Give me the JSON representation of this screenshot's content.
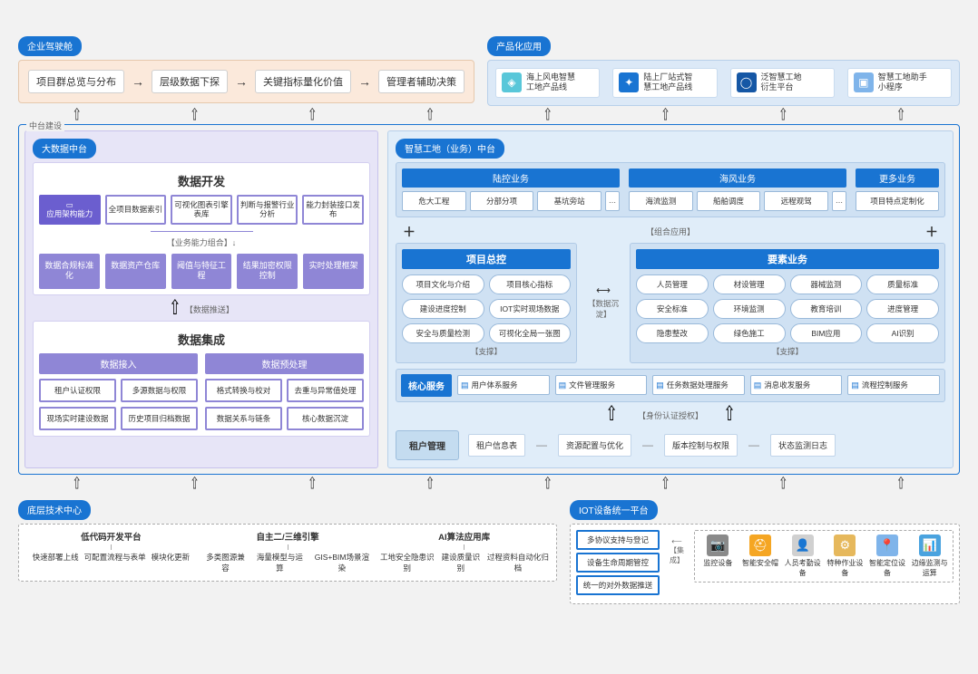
{
  "background": "#f2f2f2",
  "section_labels": {
    "cockpit": "企业驾驶舱",
    "apps": "产品化应用",
    "center_wrap": "中台建设",
    "bigdata": "大数据中台",
    "smartsite": "智慧工地（业务）中台",
    "tech": "底层技术中心",
    "iot": "IOT设备统一平台"
  },
  "cockpit": {
    "bg_color": "#fbe9db",
    "items": [
      "项目群总览与分布",
      "层级数据下探",
      "关键指标量化价值",
      "管理者辅助决策"
    ]
  },
  "apps": {
    "bg_color": "#dce9f7",
    "cards": [
      {
        "icon_bg": "#59c7d9",
        "glyph": "◈",
        "line1": "海上风电智慧",
        "line2": "工地产品线"
      },
      {
        "icon_bg": "#1974d2",
        "glyph": "✦",
        "line1": "陆上厂站式智",
        "line2": "慧工地产品线"
      },
      {
        "icon_bg": "#1557a5",
        "glyph": "◯",
        "line1": "泛智慧工地",
        "line2": "衍生平台"
      },
      {
        "icon_bg": "#7fb4ea",
        "glyph": "▣",
        "line1": "智慧工地助手",
        "line2": "小程序"
      }
    ]
  },
  "bigdata": {
    "bg_color": "#e7e5f7",
    "accent": "#8f86d6",
    "dev": {
      "title": "数据开发",
      "top_first": "应用架构能力",
      "top": [
        "全项目数据索引",
        "可视化图表引擎表库",
        "判断与报警行业分析",
        "能力封装接口发布"
      ],
      "brace_label": "【业务能力组合】↓",
      "caps": [
        "数据合规标准化",
        "数据资产仓库",
        "阈值与特征工程",
        "结果加密权限控制",
        "实时处理框架"
      ]
    },
    "mid_label": "【数据推送】",
    "ing": {
      "title": "数据集成",
      "cols": [
        {
          "head": "数据接入",
          "items": [
            "租户认证权限",
            "多源数据与权限",
            "现场实时建设数据",
            "历史项目归档数据"
          ]
        },
        {
          "head": "数据预处理",
          "items": [
            "格式转换与校对",
            "去重与异常值处理",
            "数据关系与链条",
            "核心数据沉淀"
          ]
        }
      ]
    }
  },
  "smartsite": {
    "bg_color": "#e0edf9",
    "panel_color": "#cfe1f3",
    "accent": "#1974d2",
    "biz": [
      {
        "head": "陆控业务",
        "items": [
          "危大工程",
          "分部分项",
          "基坑旁站",
          "…"
        ]
      },
      {
        "head": "海风业务",
        "items": [
          "海流监测",
          "船舶调度",
          "远程观驾",
          "…"
        ]
      }
    ],
    "biz_extra": {
      "head": "更多业务",
      "item": "项目特点定制化"
    },
    "mid_label": "【组合应用】",
    "panels": {
      "left": {
        "title": "项目总控",
        "foot": "【支撑】",
        "items": [
          "项目文化与介绍",
          "项目核心指标",
          "建设进度控制",
          "IOT实时现场数据",
          "安全与质量检测",
          "可视化全局一张图"
        ]
      },
      "gap_label": "【数据沉淀】",
      "right": {
        "title": "要素业务",
        "foot": "【支撑】",
        "items": [
          "人员管理",
          "材设管理",
          "器械监测",
          "质量标准",
          "安全标准",
          "环境监测",
          "教育培训",
          "进度管理",
          "隐患整改",
          "绿色施工",
          "BIM应用",
          "AI识别"
        ]
      }
    },
    "core": {
      "lead": "核心服务",
      "items": [
        "用户体系服务",
        "文件管理服务",
        "任务数据处理服务",
        "消息收发服务",
        "流程控制服务"
      ]
    },
    "auth_label": "【身份认证授权】",
    "tenant": {
      "lead": "租户管理",
      "items": [
        "租户信息表",
        "资源配置与优化",
        "版本控制与权限",
        "状态监测日志"
      ]
    }
  },
  "tech": {
    "cols": [
      {
        "head": "低代码开发平台",
        "items": [
          "快速部署上线",
          "可配置流程与表单",
          "模块化更新"
        ]
      },
      {
        "head": "自主二/三维引擎",
        "items": [
          "多类图源兼容",
          "海量模型与运算",
          "GIS+BIM场景渲染"
        ]
      },
      {
        "head": "AI算法应用库",
        "items": [
          "工地安全隐患识别",
          "建设质量识别",
          "过程资料自动化归档"
        ]
      }
    ]
  },
  "iot": {
    "left": [
      "多协议支持与登记",
      "设备生命周期管控",
      "统一的对外数据推送"
    ],
    "mid": "【集成】",
    "devices": [
      {
        "bg": "#8a8a8a",
        "glyph": "📷",
        "label": "监控设备"
      },
      {
        "bg": "#f5a623",
        "glyph": "⛑",
        "label": "智能安全帽"
      },
      {
        "bg": "#d0d0d0",
        "glyph": "👤",
        "label": "人员考勤设备"
      },
      {
        "bg": "#e6b85c",
        "glyph": "⚙",
        "label": "特种作业设备"
      },
      {
        "bg": "#7fb4ea",
        "glyph": "📍",
        "label": "智能定位设备"
      },
      {
        "bg": "#4aa3df",
        "glyph": "📊",
        "label": "边缘监测与运算"
      }
    ]
  }
}
